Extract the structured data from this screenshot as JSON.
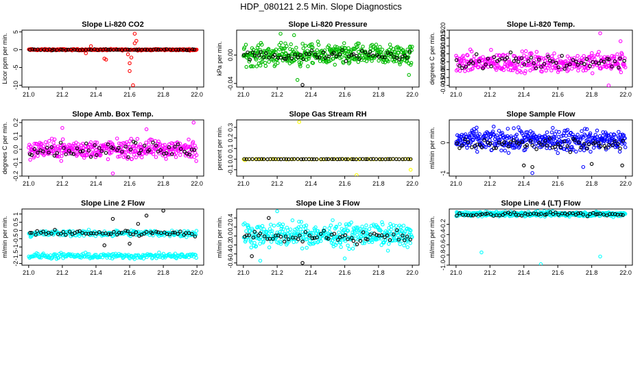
{
  "figure_title": "HDP_080121  2.5 Min. Slope Diagnostics",
  "chart_data": [
    {
      "type": "scatter",
      "title": "Slope Li-820 CO2",
      "ylabel": "Licor ppm per min.",
      "xlim": [
        21.0,
        22.0
      ],
      "ylim": [
        -10.5,
        5.5
      ],
      "xticks": [
        "21.0",
        "21.2",
        "21.4",
        "21.6",
        "21.8",
        "22.0"
      ],
      "yticks": [
        {
          "v": -10,
          "t": "-10"
        },
        {
          "v": -5,
          "t": "-5"
        },
        {
          "v": 0,
          "t": "0"
        },
        {
          "v": 5,
          "t": "5"
        }
      ],
      "series": [
        {
          "name": "all",
          "color": "#ff0000",
          "band": [
            -0.3,
            0.3
          ],
          "n": 300,
          "outliers": [
            [
              21.45,
              -2.5
            ],
            [
              21.46,
              -2.8
            ],
            [
              21.6,
              -3.8
            ],
            [
              21.61,
              -2.2
            ],
            [
              21.6,
              -6.0
            ],
            [
              21.62,
              -10.0
            ],
            [
              21.63,
              4.5
            ],
            [
              21.63,
              1.8
            ],
            [
              21.59,
              -1.3
            ],
            [
              21.37,
              1.0
            ],
            [
              21.34,
              -1.0
            ],
            [
              21.64,
              2.5
            ]
          ]
        },
        {
          "name": "subset",
          "color": "#000000",
          "band": [
            -0.2,
            0.2
          ],
          "n": 60,
          "outliers": []
        }
      ]
    },
    {
      "type": "scatter",
      "title": "Slope Li-820 Pressure",
      "ylabel": "kPa per min.",
      "xlim": [
        21.0,
        22.0
      ],
      "ylim": [
        -0.045,
        0.035
      ],
      "xticks": [
        "21.0",
        "21.2",
        "21.4",
        "21.6",
        "21.8",
        "22.0"
      ],
      "yticks": [
        {
          "v": -0.04,
          "t": "-0.04"
        },
        {
          "v": 0,
          "t": "0.00"
        }
      ],
      "series": [
        {
          "name": "all",
          "color": "#00bb00",
          "band": [
            -0.022,
            0.022
          ],
          "n": 420,
          "outliers": [
            [
              21.22,
              0.03
            ],
            [
              21.3,
              0.028
            ],
            [
              21.32,
              -0.035
            ],
            [
              21.98,
              -0.028
            ]
          ]
        },
        {
          "name": "subset",
          "color": "#000000",
          "band": [
            -0.012,
            0.01
          ],
          "n": 60,
          "outliers": [
            [
              21.35,
              -0.042
            ]
          ]
        }
      ]
    },
    {
      "type": "scatter",
      "title": "Slope Li-820 Temp.",
      "ylabel": "degrees C per min.",
      "xlim": [
        21.0,
        22.0
      ],
      "ylim": [
        -0.016,
        0.02
      ],
      "xticks": [
        "21.0",
        "21.2",
        "21.4",
        "21.6",
        "21.8",
        "22.0"
      ],
      "yticks": [
        {
          "v": -0.015,
          "t": "-0.015"
        },
        {
          "v": -0.01,
          "t": "-0.010"
        },
        {
          "v": -0.005,
          "t": "-0.005"
        },
        {
          "v": 0,
          "t": "0.000"
        },
        {
          "v": 0.005,
          "t": "0.005"
        },
        {
          "v": 0.01,
          "t": "0.010"
        },
        {
          "v": 0.015,
          "t": "0.015"
        },
        {
          "v": 0.02,
          "t": "0.020"
        }
      ],
      "series": [
        {
          "name": "all",
          "color": "#ff00ff",
          "band": [
            -0.01,
            0.009
          ],
          "n": 360,
          "outliers": [
            [
              21.85,
              0.018
            ],
            [
              21.97,
              0.013
            ],
            [
              21.9,
              -0.015
            ]
          ]
        },
        {
          "name": "subset",
          "color": "#000000",
          "band": [
            -0.008,
            0.008
          ],
          "n": 60,
          "outliers": []
        }
      ]
    },
    {
      "type": "scatter",
      "title": "Slope Amb. Box Temp.",
      "ylabel": "degrees C per min.",
      "xlim": [
        21.0,
        22.0
      ],
      "ylim": [
        -0.2,
        0.22
      ],
      "xticks": [
        "21.0",
        "21.2",
        "21.4",
        "21.6",
        "21.8",
        "22.0"
      ],
      "yticks": [
        {
          "v": -0.2,
          "t": "-0.2"
        },
        {
          "v": -0.1,
          "t": "-0.1"
        },
        {
          "v": 0,
          "t": "0.0"
        },
        {
          "v": 0.1,
          "t": "0.1"
        },
        {
          "v": 0.2,
          "t": "0.2"
        }
      ],
      "series": [
        {
          "name": "all",
          "color": "#ff00ff",
          "band": [
            -0.1,
            0.1
          ],
          "n": 380,
          "outliers": [
            [
              21.98,
              0.2
            ],
            [
              21.7,
              0.15
            ],
            [
              21.5,
              -0.18
            ],
            [
              21.2,
              0.16
            ]
          ]
        },
        {
          "name": "subset",
          "color": "#000000",
          "band": [
            -0.08,
            0.08
          ],
          "n": 60,
          "outliers": []
        }
      ]
    },
    {
      "type": "scatter",
      "title": "Slope Gas Stream RH",
      "ylabel": "percent per min.",
      "xlim": [
        21.0,
        22.0
      ],
      "ylim": [
        -0.16,
        0.37
      ],
      "xticks": [
        "21.0",
        "21.2",
        "21.4",
        "21.6",
        "21.8",
        "22.0"
      ],
      "yticks": [
        {
          "v": -0.1,
          "t": "-0.1"
        },
        {
          "v": 0,
          "t": "0.0"
        },
        {
          "v": 0.1,
          "t": "0.1"
        },
        {
          "v": 0.2,
          "t": "0.2"
        },
        {
          "v": 0.3,
          "t": "0.3"
        }
      ],
      "series": [
        {
          "name": "all",
          "color": "#ffff00",
          "band": [
            -0.005,
            0.005
          ],
          "n": 60,
          "outliers": [
            [
              21.33,
              0.35
            ],
            [
              21.67,
              -0.15
            ],
            [
              21.99,
              -0.1
            ],
            [
              21.01,
              -0.01
            ]
          ]
        },
        {
          "name": "subset",
          "color": "#000000",
          "band": [
            -0.002,
            0.002
          ],
          "n": 60,
          "outliers": []
        }
      ]
    },
    {
      "type": "scatter",
      "title": "Slope Sample Flow",
      "ylabel": "ml/min per min.",
      "xlim": [
        21.0,
        22.0
      ],
      "ylim": [
        -1.1,
        0.75
      ],
      "xticks": [
        "21.0",
        "21.2",
        "21.4",
        "21.6",
        "21.8",
        "22.0"
      ],
      "yticks": [
        {
          "v": -1,
          "t": "-1"
        },
        {
          "v": 0,
          "t": "0"
        }
      ],
      "series": [
        {
          "name": "all",
          "color": "#0000ff",
          "band": [
            -0.45,
            0.6
          ],
          "n": 420,
          "outliers": [
            [
              21.45,
              -1.0
            ],
            [
              21.75,
              -0.8
            ]
          ]
        },
        {
          "name": "subset",
          "color": "#000000",
          "band": [
            -0.35,
            0.25
          ],
          "n": 60,
          "outliers": [
            [
              21.4,
              -0.75
            ],
            [
              21.45,
              -0.8
            ],
            [
              21.98,
              -0.75
            ],
            [
              21.8,
              -0.7
            ]
          ]
        }
      ]
    },
    {
      "type": "scatter",
      "title": "Slope Line 2 Flow",
      "ylabel": "ml/min per min.",
      "xlim": [
        21.0,
        22.0
      ],
      "ylim": [
        -2.1,
        1.3
      ],
      "xticks": [
        "21.0",
        "21.2",
        "21.4",
        "21.6",
        "21.8",
        "22.0"
      ],
      "yticks": [
        {
          "v": -2,
          "t": "-2"
        },
        {
          "v": -1.5,
          "t": "-1.5"
        },
        {
          "v": -1,
          "t": "-1"
        },
        {
          "v": -0.5,
          "t": "-0.5"
        },
        {
          "v": 0,
          "t": "0"
        },
        {
          "v": 0.5,
          "t": "0.5"
        },
        {
          "v": 1,
          "t": "1"
        }
      ],
      "series": [
        {
          "name": "upper",
          "color": "#00ffff",
          "band": [
            -0.45,
            0.1
          ],
          "n": 220,
          "outliers": []
        },
        {
          "name": "lower",
          "color": "#00ffff",
          "band": [
            -1.8,
            -1.3
          ],
          "n": 220,
          "outliers": []
        },
        {
          "name": "subset",
          "color": "#000000",
          "band": [
            -0.4,
            0.1
          ],
          "n": 60,
          "outliers": [
            [
              21.5,
              0.7
            ],
            [
              21.65,
              0.4
            ],
            [
              21.7,
              0.9
            ],
            [
              21.8,
              1.2
            ],
            [
              21.45,
              -0.9
            ],
            [
              21.6,
              -0.8
            ]
          ]
        }
      ]
    },
    {
      "type": "scatter",
      "title": "Slope Line 3 Flow",
      "ylabel": "ml/min per min.",
      "xlim": [
        21.0,
        22.0
      ],
      "ylim": [
        -0.65,
        0.6
      ],
      "xticks": [
        "21.0",
        "21.2",
        "21.4",
        "21.6",
        "21.8",
        "22.0"
      ],
      "yticks": [
        {
          "v": -0.6,
          "t": "-0.6"
        },
        {
          "v": -0.4,
          "t": "-0.4"
        },
        {
          "v": -0.2,
          "t": "-0.2"
        },
        {
          "v": 0,
          "t": "0.0"
        },
        {
          "v": 0.2,
          "t": "0.2"
        },
        {
          "v": 0.4,
          "t": "0.4"
        }
      ],
      "series": [
        {
          "name": "all",
          "color": "#00ffff",
          "band": [
            -0.35,
            0.4
          ],
          "n": 420,
          "outliers": [
            [
              21.2,
              0.55
            ],
            [
              21.1,
              -0.55
            ],
            [
              21.6,
              -0.5
            ]
          ]
        },
        {
          "name": "subset",
          "color": "#000000",
          "band": [
            -0.2,
            0.15
          ],
          "n": 60,
          "outliers": [
            [
              21.35,
              -0.6
            ],
            [
              21.05,
              -0.45
            ],
            [
              21.15,
              0.4
            ]
          ]
        }
      ]
    },
    {
      "type": "scatter",
      "title": "Slope Line 4 (LT) Flow",
      "ylabel": "ml/min per min.",
      "xlim": [
        21.0,
        22.0
      ],
      "ylim": [
        -1.0,
        0.1
      ],
      "xticks": [
        "21.0",
        "21.2",
        "21.4",
        "21.6",
        "21.8",
        "22.0"
      ],
      "yticks": [
        {
          "v": -1,
          "t": "-1.0"
        },
        {
          "v": -0.8,
          "t": "-0.8"
        },
        {
          "v": -0.6,
          "t": "-0.6"
        },
        {
          "v": -0.4,
          "t": "-0.4"
        },
        {
          "v": -0.2,
          "t": "-0.2"
        }
      ],
      "series": [
        {
          "name": "all",
          "color": "#00ffff",
          "band": [
            -0.07,
            0.07
          ],
          "n": 380,
          "outliers": [
            [
              21.15,
              -0.75
            ],
            [
              21.5,
              -0.98
            ],
            [
              21.85,
              -0.83
            ]
          ]
        },
        {
          "name": "subset",
          "color": "#000000",
          "band": [
            -0.06,
            0.06
          ],
          "n": 60,
          "outliers": []
        }
      ]
    }
  ]
}
